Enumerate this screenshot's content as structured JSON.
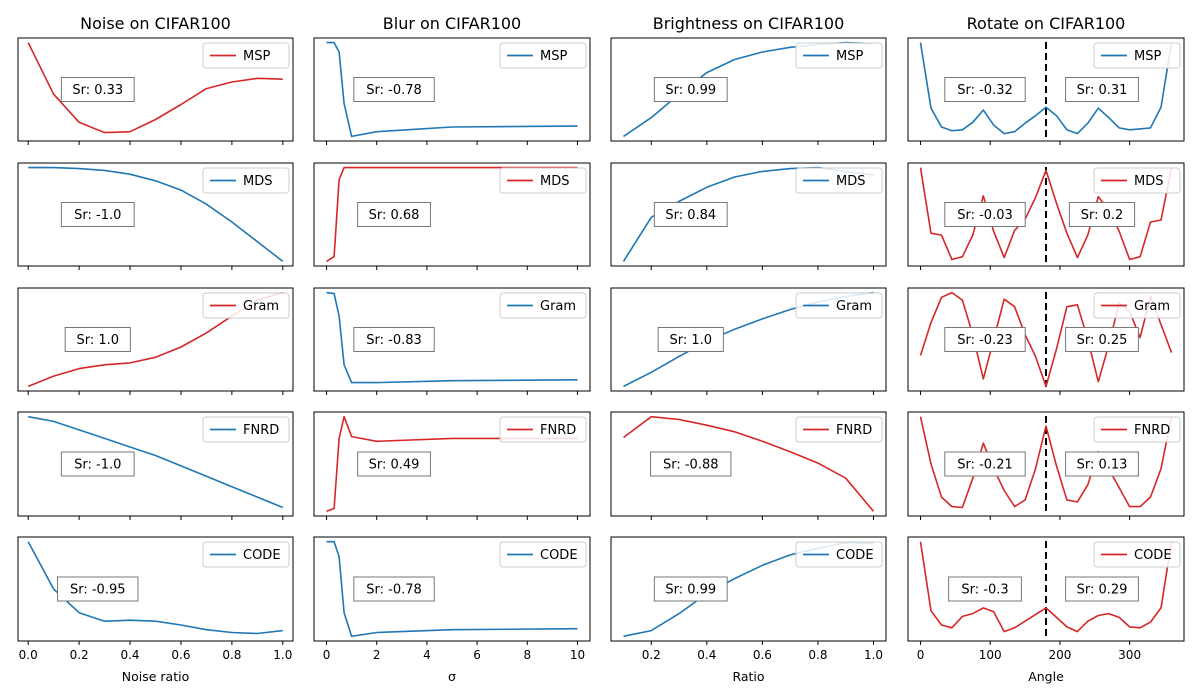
{
  "chart_data": {
    "type": "line",
    "layout": "grid 5 rows x 4 columns, shared x-axis per column",
    "colors": {
      "blue": "#1f77b4",
      "red": "#d62728",
      "vline": "#000000"
    },
    "columns": [
      {
        "title": "Noise on CIFAR100",
        "xlabel": "Noise ratio",
        "xlim": [
          -0.04,
          1.04
        ],
        "xticks": [
          0.0,
          0.2,
          0.4,
          0.6,
          0.8,
          1.0
        ],
        "xtick_labels": [
          "0.0",
          "0.2",
          "0.4",
          "0.6",
          "0.8",
          "1.0"
        ],
        "x": [
          0.0,
          0.1,
          0.2,
          0.3,
          0.4,
          0.5,
          0.6,
          0.7,
          0.8,
          0.9,
          1.0
        ]
      },
      {
        "title": "Blur on CIFAR100",
        "xlabel": "σ",
        "xlim": [
          -0.5,
          10.5
        ],
        "xticks": [
          0,
          2,
          4,
          6,
          8,
          10
        ],
        "xtick_labels": [
          "0",
          "2",
          "4",
          "6",
          "8",
          "10"
        ],
        "x": [
          0.0,
          0.3,
          0.5,
          0.7,
          1.0,
          2.0,
          5.0,
          10.0
        ]
      },
      {
        "title": "Brightness on CIFAR100",
        "xlabel": "Ratio",
        "xlim": [
          0.055,
          1.045
        ],
        "xticks": [
          0.2,
          0.4,
          0.6,
          0.8,
          1.0
        ],
        "xtick_labels": [
          "0.2",
          "0.4",
          "0.6",
          "0.8",
          "1.0"
        ],
        "x": [
          0.1,
          0.2,
          0.3,
          0.4,
          0.5,
          0.6,
          0.7,
          0.8,
          0.9,
          1.0
        ]
      },
      {
        "title": "Rotate on CIFAR100",
        "xlabel": "Angle",
        "xlim": [
          -18,
          378
        ],
        "xticks": [
          0,
          100,
          200,
          300
        ],
        "xtick_labels": [
          "0",
          "100",
          "200",
          "300"
        ],
        "x": [
          0,
          15,
          30,
          45,
          60,
          75,
          90,
          105,
          120,
          135,
          150,
          165,
          180,
          195,
          210,
          225,
          240,
          255,
          270,
          285,
          300,
          315,
          330,
          345,
          360
        ],
        "vline_x": 180
      }
    ],
    "methods": [
      "MSP",
      "MDS",
      "Gram",
      "FNRD",
      "CODE"
    ],
    "panels": [
      [
        {
          "legend": "MSP",
          "color": "red",
          "sr": [
            "Sr: 0.33"
          ],
          "y": [
            1.0,
            0.45,
            0.15,
            0.04,
            0.05,
            0.18,
            0.34,
            0.51,
            0.58,
            0.62,
            0.61
          ]
        },
        {
          "legend": "MSP",
          "color": "blue",
          "sr": [
            "Sr: -0.78"
          ],
          "y": [
            1.0,
            1.0,
            0.9,
            0.35,
            0.0,
            0.05,
            0.1,
            0.11
          ]
        },
        {
          "legend": "MSP",
          "color": "blue",
          "sr": [
            "Sr: 0.99"
          ],
          "y": [
            0.0,
            0.2,
            0.45,
            0.68,
            0.82,
            0.9,
            0.95,
            0.98,
            1.0,
            0.99
          ]
        },
        {
          "legend": "MSP",
          "color": "blue",
          "sr": [
            "Sr: -0.32",
            "Sr: 0.31"
          ],
          "y": [
            1.0,
            0.3,
            0.1,
            0.06,
            0.07,
            0.15,
            0.28,
            0.12,
            0.03,
            0.05,
            0.14,
            0.22,
            0.31,
            0.22,
            0.07,
            0.03,
            0.14,
            0.3,
            0.2,
            0.09,
            0.07,
            0.08,
            0.09,
            0.31,
            1.0
          ]
        }
      ],
      [
        {
          "legend": "MDS",
          "color": "blue",
          "sr": [
            "Sr: -1.0"
          ],
          "y": [
            1.0,
            1.0,
            0.99,
            0.97,
            0.93,
            0.86,
            0.76,
            0.61,
            0.42,
            0.21,
            0.0
          ]
        },
        {
          "legend": "MDS",
          "color": "red",
          "sr": [
            "Sr: 0.68"
          ],
          "y": [
            0.0,
            0.05,
            0.87,
            1.0,
            1.0,
            1.0,
            1.0,
            1.0
          ]
        },
        {
          "legend": "MDS",
          "color": "blue",
          "sr": [
            "Sr: 0.84"
          ],
          "y": [
            0.0,
            0.47,
            0.64,
            0.79,
            0.9,
            0.96,
            0.99,
            1.0,
            0.96,
            0.92
          ]
        },
        {
          "legend": "MDS",
          "color": "red",
          "sr": [
            "Sr: -0.03",
            "Sr: 0.2"
          ],
          "y": [
            1.0,
            0.3,
            0.28,
            0.02,
            0.05,
            0.28,
            0.7,
            0.32,
            0.04,
            0.33,
            0.45,
            0.68,
            0.97,
            0.62,
            0.3,
            0.04,
            0.28,
            0.69,
            0.55,
            0.32,
            0.02,
            0.05,
            0.42,
            0.44,
            1.0
          ]
        }
      ],
      [
        {
          "legend": "Gram",
          "color": "red",
          "sr": [
            "Sr: 1.0"
          ],
          "y": [
            0.0,
            0.11,
            0.19,
            0.23,
            0.25,
            0.31,
            0.42,
            0.57,
            0.75,
            0.92,
            1.0
          ]
        },
        {
          "legend": "Gram",
          "color": "blue",
          "sr": [
            "Sr: -0.83"
          ],
          "y": [
            1.0,
            0.99,
            0.75,
            0.23,
            0.04,
            0.04,
            0.06,
            0.07
          ]
        },
        {
          "legend": "Gram",
          "color": "blue",
          "sr": [
            "Sr: 1.0"
          ],
          "y": [
            0.0,
            0.15,
            0.32,
            0.48,
            0.61,
            0.72,
            0.82,
            0.9,
            0.96,
            1.0
          ]
        },
        {
          "legend": "Gram",
          "color": "red",
          "sr": [
            "Sr: -0.23",
            "Sr: 0.25"
          ],
          "y": [
            0.33,
            0.68,
            0.95,
            1.0,
            0.92,
            0.55,
            0.08,
            0.5,
            0.93,
            0.85,
            0.55,
            0.32,
            0.0,
            0.4,
            0.85,
            0.87,
            0.5,
            0.05,
            0.44,
            0.89,
            0.8,
            0.52,
            0.96,
            0.66,
            0.36
          ]
        }
      ],
      [
        {
          "legend": "FNRD",
          "color": "blue",
          "sr": [
            "Sr: -1.0"
          ],
          "y": [
            1.0,
            0.95,
            0.86,
            0.77,
            0.68,
            0.59,
            0.48,
            0.37,
            0.26,
            0.15,
            0.04
          ]
        },
        {
          "legend": "FNRD",
          "color": "red",
          "sr": [
            "Sr: 0.49"
          ],
          "y": [
            0.0,
            0.03,
            0.77,
            1.0,
            0.79,
            0.74,
            0.77,
            0.77
          ]
        },
        {
          "legend": "FNRD",
          "color": "red",
          "sr": [
            "Sr: -0.88"
          ],
          "y": [
            0.78,
            1.0,
            0.97,
            0.91,
            0.84,
            0.74,
            0.63,
            0.51,
            0.35,
            0.0
          ]
        },
        {
          "legend": "FNRD",
          "color": "red",
          "sr": [
            "Sr: -0.21",
            "Sr: 0.13"
          ],
          "y": [
            1.0,
            0.5,
            0.15,
            0.05,
            0.04,
            0.35,
            0.72,
            0.45,
            0.22,
            0.05,
            0.12,
            0.45,
            0.9,
            0.48,
            0.12,
            0.1,
            0.28,
            0.63,
            0.45,
            0.25,
            0.05,
            0.05,
            0.15,
            0.45,
            1.0
          ]
        }
      ],
      [
        {
          "legend": "CODE",
          "color": "blue",
          "sr": [
            "Sr: -0.95"
          ],
          "y": [
            1.0,
            0.5,
            0.25,
            0.16,
            0.17,
            0.16,
            0.12,
            0.07,
            0.04,
            0.03,
            0.06
          ]
        },
        {
          "legend": "CODE",
          "color": "blue",
          "sr": [
            "Sr: -0.78"
          ],
          "y": [
            1.0,
            1.0,
            0.84,
            0.25,
            0.0,
            0.04,
            0.07,
            0.08
          ]
        },
        {
          "legend": "CODE",
          "color": "blue",
          "sr": [
            "Sr: 0.99"
          ],
          "y": [
            0.0,
            0.06,
            0.24,
            0.45,
            0.61,
            0.75,
            0.86,
            0.93,
            0.99,
            0.98
          ]
        },
        {
          "legend": "CODE",
          "color": "red",
          "sr": [
            "Sr: -0.3",
            "Sr: 0.29"
          ],
          "y": [
            1.0,
            0.27,
            0.12,
            0.09,
            0.21,
            0.24,
            0.3,
            0.26,
            0.05,
            0.09,
            0.16,
            0.23,
            0.3,
            0.2,
            0.1,
            0.05,
            0.16,
            0.22,
            0.24,
            0.2,
            0.1,
            0.09,
            0.15,
            0.3,
            1.0
          ]
        }
      ]
    ]
  }
}
